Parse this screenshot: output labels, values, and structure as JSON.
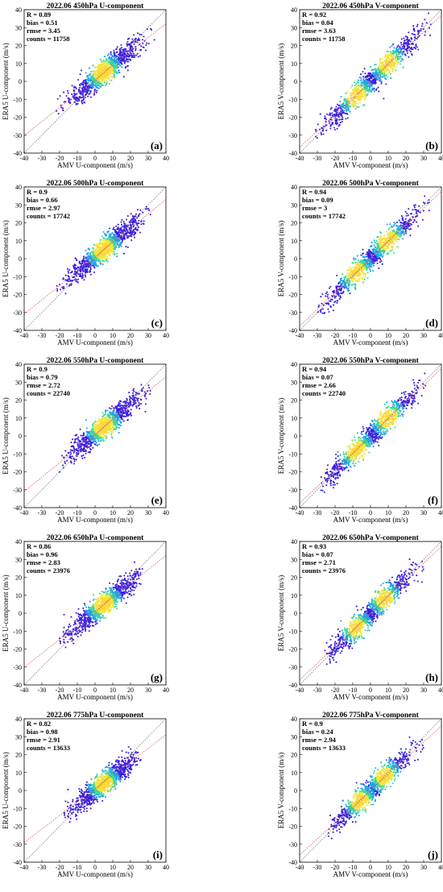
{
  "chart_data": [
    {
      "panel": "(a)",
      "type": "scatter",
      "title": "2022.06 450hPa U-component",
      "xlabel": "AMV U-component (m/s)",
      "ylabel": "ERA5 U-component (m/s)",
      "xlim": [
        -40,
        40
      ],
      "ylim": [
        -40,
        40
      ],
      "stats": [
        {
          "label": "R",
          "value": "0.89"
        },
        {
          "label": "bias",
          "value": "0.51"
        },
        {
          "label": "rmse",
          "value": "3.45"
        },
        {
          "label": "counts",
          "value": "11758"
        }
      ],
      "density": {
        "centers": [
          [
            5,
            5
          ]
        ],
        "spread": 9,
        "xrange": [
          -22,
          36
        ],
        "fit_slope": 0.78,
        "fit_intercept": 1.0
      }
    },
    {
      "panel": "(b)",
      "type": "scatter",
      "title": "2022.06 450hPa V-component",
      "xlabel": "AMV V-component (m/s)",
      "ylabel": "ERA5 V-component (m/s)",
      "xlim": [
        -40,
        40
      ],
      "ylim": [
        -40,
        40
      ],
      "stats": [
        {
          "label": "R",
          "value": "0.92"
        },
        {
          "label": "bias",
          "value": "0.04"
        },
        {
          "label": "rmse",
          "value": "3.63"
        },
        {
          "label": "counts",
          "value": "11758"
        }
      ],
      "density": {
        "centers": [
          [
            -8,
            -8
          ],
          [
            10,
            10
          ]
        ],
        "spread": 9,
        "xrange": [
          -32,
          34
        ],
        "fit_slope": 0.92,
        "fit_intercept": 0.0
      }
    },
    {
      "panel": "(c)",
      "type": "scatter",
      "title": "2022.06 500hPa U-component",
      "xlabel": "AMV U-component (m/s)",
      "ylabel": "ERA5 U-component (m/s)",
      "xlim": [
        -40,
        40
      ],
      "ylim": [
        -40,
        40
      ],
      "stats": [
        {
          "label": "R",
          "value": "0.9"
        },
        {
          "label": "bias",
          "value": "0.66"
        },
        {
          "label": "rmse",
          "value": "2.97"
        },
        {
          "label": "counts",
          "value": "17742"
        }
      ],
      "density": {
        "centers": [
          [
            5,
            5
          ]
        ],
        "spread": 9,
        "xrange": [
          -22,
          34
        ],
        "fit_slope": 0.8,
        "fit_intercept": 1.0
      }
    },
    {
      "panel": "(d)",
      "type": "scatter",
      "title": "2022.06 500hPa V-component",
      "xlabel": "AMV V-component (m/s)",
      "ylabel": "ERA5 V-component (m/s)",
      "xlim": [
        -40,
        40
      ],
      "ylim": [
        -40,
        40
      ],
      "stats": [
        {
          "label": "R",
          "value": "0.94"
        },
        {
          "label": "bias",
          "value": "0.09"
        },
        {
          "label": "rmse",
          "value": "3"
        },
        {
          "label": "counts",
          "value": "17742"
        }
      ],
      "density": {
        "centers": [
          [
            -8,
            -8
          ],
          [
            10,
            10
          ]
        ],
        "spread": 9,
        "xrange": [
          -30,
          34
        ],
        "fit_slope": 0.94,
        "fit_intercept": 0.0
      }
    },
    {
      "panel": "(e)",
      "type": "scatter",
      "title": "2022.06 550hPa U-component",
      "xlabel": "AMV U-component (m/s)",
      "ylabel": "ERA5 U-component (m/s)",
      "xlim": [
        -40,
        40
      ],
      "ylim": [
        -40,
        40
      ],
      "stats": [
        {
          "label": "R",
          "value": "0.9"
        },
        {
          "label": "bias",
          "value": "0.79"
        },
        {
          "label": "rmse",
          "value": "2.72"
        },
        {
          "label": "counts",
          "value": "22740"
        }
      ],
      "density": {
        "centers": [
          [
            5,
            5
          ]
        ],
        "spread": 9,
        "xrange": [
          -20,
          32
        ],
        "fit_slope": 0.8,
        "fit_intercept": 1.0
      }
    },
    {
      "panel": "(f)",
      "type": "scatter",
      "title": "2022.06 550hPa V-component",
      "xlabel": "AMV V-component (m/s)",
      "ylabel": "ERA5 V-component (m/s)",
      "xlim": [
        -40,
        40
      ],
      "ylim": [
        -40,
        40
      ],
      "stats": [
        {
          "label": "R",
          "value": "0.94"
        },
        {
          "label": "bias",
          "value": "0.07"
        },
        {
          "label": "rmse",
          "value": "2.66"
        },
        {
          "label": "counts",
          "value": "22740"
        }
      ],
      "density": {
        "centers": [
          [
            -8,
            -8
          ],
          [
            10,
            10
          ]
        ],
        "spread": 9,
        "xrange": [
          -28,
          32
        ],
        "fit_slope": 0.94,
        "fit_intercept": 0.0
      }
    },
    {
      "panel": "(g)",
      "type": "scatter",
      "title": "2022.06 650hPa U-component",
      "xlabel": "AMV U-component (m/s)",
      "ylabel": "ERA5 U-component (m/s)",
      "xlim": [
        -40,
        40
      ],
      "ylim": [
        -40,
        40
      ],
      "stats": [
        {
          "label": "R",
          "value": "0.86"
        },
        {
          "label": "bias",
          "value": "0.96"
        },
        {
          "label": "rmse",
          "value": "2.83"
        },
        {
          "label": "counts",
          "value": "23976"
        }
      ],
      "density": {
        "centers": [
          [
            5,
            5
          ]
        ],
        "spread": 9,
        "xrange": [
          -20,
          28
        ],
        "fit_slope": 0.78,
        "fit_intercept": 1.0
      }
    },
    {
      "panel": "(h)",
      "type": "scatter",
      "title": "2022.06 650hPa V-component",
      "xlabel": "AMV V-component (m/s)",
      "ylabel": "ERA5 V-component (m/s)",
      "xlim": [
        -40,
        40
      ],
      "ylim": [
        -40,
        40
      ],
      "stats": [
        {
          "label": "R",
          "value": "0.93"
        },
        {
          "label": "bias",
          "value": "0.07"
        },
        {
          "label": "rmse",
          "value": "2.71"
        },
        {
          "label": "counts",
          "value": "23976"
        }
      ],
      "density": {
        "centers": [
          [
            -8,
            -8
          ],
          [
            8,
            8
          ]
        ],
        "spread": 8,
        "xrange": [
          -26,
          30
        ],
        "fit_slope": 0.93,
        "fit_intercept": 0.0
      }
    },
    {
      "panel": "(i)",
      "type": "scatter",
      "title": "2022.06 775hPa U-component",
      "xlabel": "AMV U-component (m/s)",
      "ylabel": "ERA5 U-component (m/s)",
      "xlim": [
        -40,
        40
      ],
      "ylim": [
        -40,
        40
      ],
      "stats": [
        {
          "label": "R",
          "value": "0.82"
        },
        {
          "label": "bias",
          "value": "0.98"
        },
        {
          "label": "rmse",
          "value": "2.91"
        },
        {
          "label": "counts",
          "value": "13633"
        }
      ],
      "density": {
        "centers": [
          [
            5,
            4
          ]
        ],
        "spread": 8,
        "xrange": [
          -18,
          26
        ],
        "fit_slope": 0.75,
        "fit_intercept": 1.0
      }
    },
    {
      "panel": "(j)",
      "type": "scatter",
      "title": "2022.06 775hPa V-component",
      "xlabel": "AMV V-component (m/s)",
      "ylabel": "ERA5 V-component (m/s)",
      "xlim": [
        -40,
        40
      ],
      "ylim": [
        -40,
        40
      ],
      "stats": [
        {
          "label": "R",
          "value": "0.9"
        },
        {
          "label": "bias",
          "value": "0.24"
        },
        {
          "label": "rmse",
          "value": "2.94"
        },
        {
          "label": "counts",
          "value": "13633"
        }
      ],
      "density": {
        "centers": [
          [
            -6,
            -6
          ],
          [
            8,
            8
          ]
        ],
        "spread": 8,
        "xrange": [
          -24,
          30
        ],
        "fit_slope": 0.9,
        "fit_intercept": 0.0
      }
    }
  ],
  "ticks": [
    -40,
    -30,
    -20,
    -10,
    0,
    10,
    20,
    30,
    40
  ],
  "colors": {
    "low": "#3b1fe0",
    "mid": "#1fa2ea",
    "midhigh": "#3fd6a0",
    "high": "#f2e53c",
    "peak": "#ffd83a",
    "one_to_one": "#7a7a7a",
    "fit": "#e05a5a"
  }
}
